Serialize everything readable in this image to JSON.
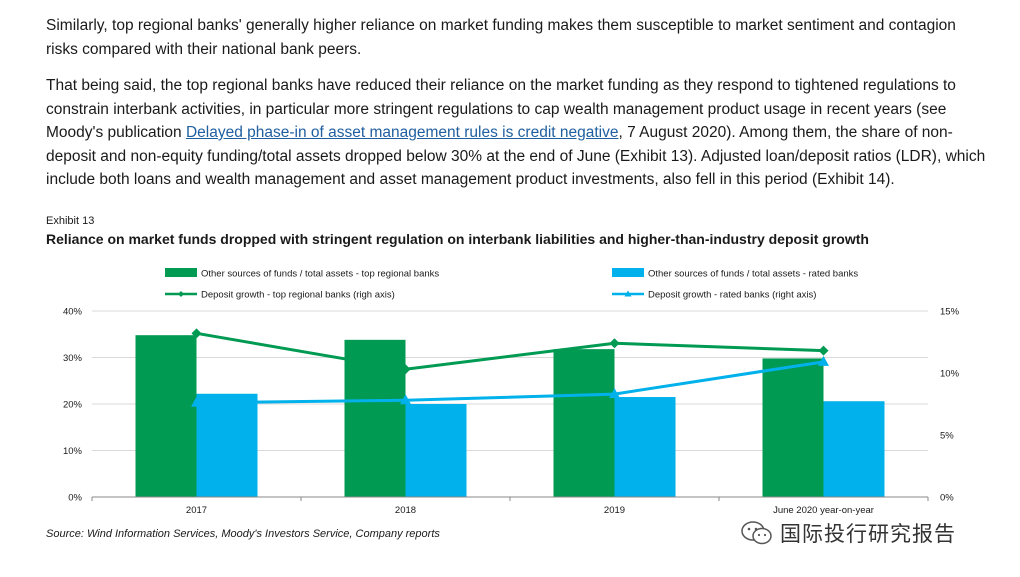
{
  "paragraphs": {
    "p1": "Similarly, top regional banks' generally higher reliance on market funding makes them susceptible to market sentiment and contagion risks compared with their national bank peers.",
    "p2_before_link": "That being said, the top regional banks have reduced their reliance on the market funding as they respond to tightened regulations to constrain interbank activities, in particular more stringent regulations to cap wealth management product usage in recent years (see Moody's publication ",
    "p2_link": "Delayed phase-in of asset management rules is credit negative",
    "p2_after_link": ", 7 August 2020). Among them, the share of non-deposit and non-equity funding/total assets dropped below 30% at the end of June (Exhibit 13). Adjusted loan/deposit ratios (LDR), which include both loans and wealth management and asset management product investments, also fell in this period (Exhibit 14)."
  },
  "exhibit": {
    "label": "Exhibit 13",
    "title": "Reliance on market funds dropped with stringent regulation on interbank liabilities and higher-than-industry deposit growth",
    "source": "Source: Wind Information Services, Moody's Investors Service, Company reports"
  },
  "watermark": {
    "text": "国际投行研究报告"
  },
  "colors": {
    "green": "#009a53",
    "blue": "#00b1eb",
    "grid": "#d9d9d9",
    "axis": "#888888"
  },
  "chart_data": {
    "type": "bar",
    "categories": [
      "2017",
      "2018",
      "2019",
      "June 2020 year-on-year"
    ],
    "y_left": {
      "ylim": [
        0,
        40
      ],
      "ticks": [
        "0%",
        "10%",
        "20%",
        "30%",
        "40%"
      ],
      "tick_values": [
        0,
        10,
        20,
        30,
        40
      ]
    },
    "y_right": {
      "ylim": [
        0,
        15
      ],
      "ticks": [
        "0%",
        "5%",
        "10%",
        "15%"
      ],
      "tick_values": [
        0,
        5,
        10,
        15
      ]
    },
    "grid": true,
    "legend_position": "top",
    "series": [
      {
        "name": "Other sources of funds / total assets - top regional banks",
        "kind": "bar",
        "axis": "left",
        "color": "#009a53",
        "values": [
          34.8,
          33.8,
          31.8,
          29.8
        ]
      },
      {
        "name": "Other sources of funds / total assets - rated banks",
        "kind": "bar",
        "axis": "left",
        "color": "#00b1eb",
        "values": [
          22.2,
          20.0,
          21.5,
          20.6
        ]
      },
      {
        "name": "Deposit growth - top regional banks (righ axis)",
        "kind": "line",
        "marker": "diamond",
        "axis": "right",
        "color": "#009a53",
        "values": [
          13.2,
          10.3,
          12.4,
          11.8
        ]
      },
      {
        "name": "Deposit growth - rated banks (right axis)",
        "kind": "line",
        "marker": "triangle",
        "axis": "right",
        "color": "#00b1eb",
        "values": [
          7.6,
          7.8,
          8.3,
          10.9
        ]
      }
    ]
  }
}
